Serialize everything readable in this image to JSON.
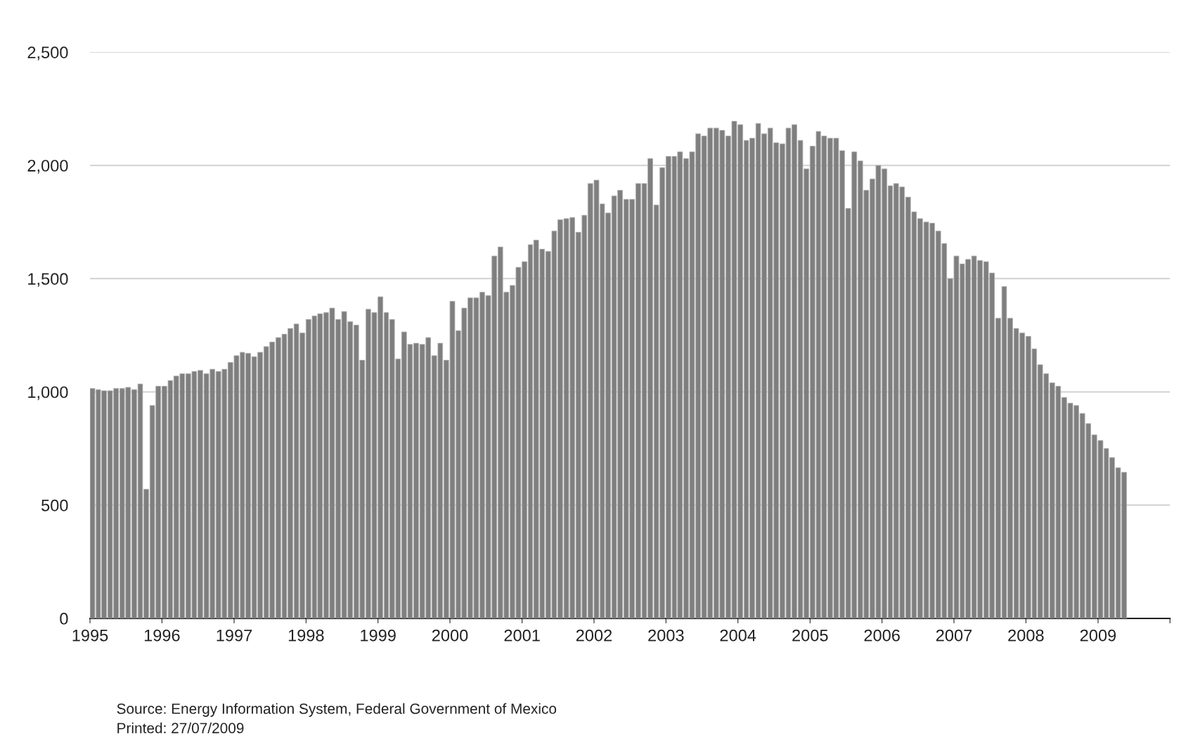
{
  "chart_data": {
    "type": "bar",
    "x": [
      "1995-01",
      "1995-02",
      "1995-03",
      "1995-04",
      "1995-05",
      "1995-06",
      "1995-07",
      "1995-08",
      "1995-09",
      "1995-10",
      "1995-11",
      "1995-12",
      "1996-01",
      "1996-02",
      "1996-03",
      "1996-04",
      "1996-05",
      "1996-06",
      "1996-07",
      "1996-08",
      "1996-09",
      "1996-10",
      "1996-11",
      "1996-12",
      "1997-01",
      "1997-02",
      "1997-03",
      "1997-04",
      "1997-05",
      "1997-06",
      "1997-07",
      "1997-08",
      "1997-09",
      "1997-10",
      "1997-11",
      "1997-12",
      "1998-01",
      "1998-02",
      "1998-03",
      "1998-04",
      "1998-05",
      "1998-06",
      "1998-07",
      "1998-08",
      "1998-09",
      "1998-10",
      "1998-11",
      "1998-12",
      "1999-01",
      "1999-02",
      "1999-03",
      "1999-04",
      "1999-05",
      "1999-06",
      "1999-07",
      "1999-08",
      "1999-09",
      "1999-10",
      "1999-11",
      "1999-12",
      "2000-01",
      "2000-02",
      "2000-03",
      "2000-04",
      "2000-05",
      "2000-06",
      "2000-07",
      "2000-08",
      "2000-09",
      "2000-10",
      "2000-11",
      "2000-12",
      "2001-01",
      "2001-02",
      "2001-03",
      "2001-04",
      "2001-05",
      "2001-06",
      "2001-07",
      "2001-08",
      "2001-09",
      "2001-10",
      "2001-11",
      "2001-12",
      "2002-01",
      "2002-02",
      "2002-03",
      "2002-04",
      "2002-05",
      "2002-06",
      "2002-07",
      "2002-08",
      "2002-09",
      "2002-10",
      "2002-11",
      "2002-12",
      "2003-01",
      "2003-02",
      "2003-03",
      "2003-04",
      "2003-05",
      "2003-06",
      "2003-07",
      "2003-08",
      "2003-09",
      "2003-10",
      "2003-11",
      "2003-12",
      "2004-01",
      "2004-02",
      "2004-03",
      "2004-04",
      "2004-05",
      "2004-06",
      "2004-07",
      "2004-08",
      "2004-09",
      "2004-10",
      "2004-11",
      "2004-12",
      "2005-01",
      "2005-02",
      "2005-03",
      "2005-04",
      "2005-05",
      "2005-06",
      "2005-07",
      "2005-08",
      "2005-09",
      "2005-10",
      "2005-11",
      "2005-12",
      "2006-01",
      "2006-02",
      "2006-03",
      "2006-04",
      "2006-05",
      "2006-06",
      "2006-07",
      "2006-08",
      "2006-09",
      "2006-10",
      "2006-11",
      "2006-12",
      "2007-01",
      "2007-02",
      "2007-03",
      "2007-04",
      "2007-05",
      "2007-06",
      "2007-07",
      "2007-08",
      "2007-09",
      "2007-10",
      "2007-11",
      "2007-12",
      "2008-01",
      "2008-02",
      "2008-03",
      "2008-04",
      "2008-05",
      "2008-06",
      "2008-07",
      "2008-08",
      "2008-09",
      "2008-10",
      "2008-11",
      "2008-12",
      "2009-01",
      "2009-02",
      "2009-03",
      "2009-04",
      "2009-05"
    ],
    "values": [
      1015,
      1010,
      1005,
      1005,
      1015,
      1015,
      1020,
      1010,
      1035,
      570,
      940,
      1025,
      1025,
      1050,
      1070,
      1080,
      1080,
      1090,
      1095,
      1080,
      1100,
      1090,
      1100,
      1130,
      1160,
      1175,
      1170,
      1155,
      1175,
      1200,
      1220,
      1240,
      1255,
      1280,
      1300,
      1260,
      1320,
      1335,
      1345,
      1350,
      1370,
      1320,
      1355,
      1310,
      1295,
      1140,
      1365,
      1350,
      1420,
      1350,
      1320,
      1145,
      1265,
      1210,
      1215,
      1210,
      1240,
      1160,
      1215,
      1140,
      1400,
      1270,
      1370,
      1415,
      1415,
      1440,
      1425,
      1600,
      1640,
      1440,
      1470,
      1550,
      1575,
      1650,
      1670,
      1630,
      1620,
      1710,
      1760,
      1765,
      1770,
      1705,
      1780,
      1920,
      1935,
      1830,
      1790,
      1865,
      1890,
      1850,
      1850,
      1920,
      1920,
      2030,
      1825,
      1990,
      2040,
      2040,
      2060,
      2030,
      2060,
      2140,
      2130,
      2165,
      2165,
      2155,
      2130,
      2195,
      2180,
      2110,
      2120,
      2185,
      2140,
      2165,
      2100,
      2095,
      2165,
      2180,
      2110,
      1985,
      2085,
      2150,
      2130,
      2120,
      2120,
      2065,
      1810,
      2060,
      2020,
      1890,
      1940,
      2000,
      1985,
      1910,
      1920,
      1905,
      1860,
      1795,
      1765,
      1750,
      1745,
      1710,
      1655,
      1500,
      1600,
      1565,
      1585,
      1600,
      1580,
      1575,
      1525,
      1325,
      1465,
      1325,
      1280,
      1260,
      1245,
      1190,
      1120,
      1080,
      1040,
      1025,
      975,
      950,
      940,
      905,
      860,
      810,
      785,
      750,
      710,
      665,
      645
    ],
    "color": "#7f7f7f",
    "xlim": [
      "1995",
      "2010"
    ],
    "xticks": [
      {
        "value": "1995",
        "label": "1995"
      },
      {
        "value": "1996",
        "label": "1996"
      },
      {
        "value": "1997",
        "label": "1997"
      },
      {
        "value": "1998",
        "label": "1998"
      },
      {
        "value": "1999",
        "label": "1999"
      },
      {
        "value": "2000",
        "label": "2000"
      },
      {
        "value": "2001",
        "label": "2001"
      },
      {
        "value": "2002",
        "label": "2002"
      },
      {
        "value": "2003",
        "label": "2003"
      },
      {
        "value": "2004",
        "label": "2004"
      },
      {
        "value": "2005",
        "label": "2005"
      },
      {
        "value": "2006",
        "label": "2006"
      },
      {
        "value": "2007",
        "label": "2007"
      },
      {
        "value": "2008",
        "label": "2008"
      },
      {
        "value": "2009",
        "label": "2009"
      },
      {
        "value": "2010",
        "label": null
      }
    ],
    "ylim": [
      0,
      2500
    ],
    "yticks": [
      {
        "value": 0,
        "label": "0"
      },
      {
        "value": 500,
        "label": "500"
      },
      {
        "value": 1000,
        "label": "1,000"
      },
      {
        "value": 1500,
        "label": "1,500"
      },
      {
        "value": 2000,
        "label": "2,000"
      },
      {
        "value": 2500,
        "label": "2,500"
      }
    ],
    "grid": "y",
    "annotations": [
      "Source: Energy Information System, Federal Government of Mexico",
      "Printed: 27/07/2009"
    ]
  }
}
